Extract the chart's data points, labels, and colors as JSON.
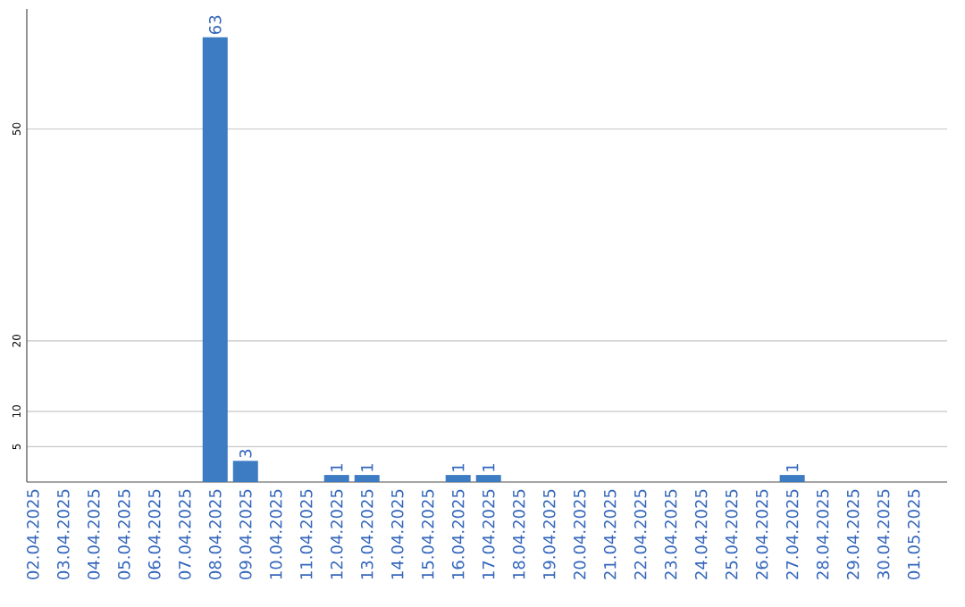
{
  "chart_data": {
    "type": "bar",
    "categories": [
      "02.04.2025",
      "03.04.2025",
      "04.04.2025",
      "05.04.2025",
      "06.04.2025",
      "07.04.2025",
      "08.04.2025",
      "09.04.2025",
      "10.04.2025",
      "11.04.2025",
      "12.04.2025",
      "13.04.2025",
      "14.04.2025",
      "15.04.2025",
      "16.04.2025",
      "17.04.2025",
      "18.04.2025",
      "19.04.2025",
      "20.04.2025",
      "21.04.2025",
      "22.04.2025",
      "23.04.2025",
      "24.04.2025",
      "25.04.2025",
      "26.04.2025",
      "27.04.2025",
      "28.04.2025",
      "29.04.2025",
      "30.04.2025",
      "01.05.2025"
    ],
    "values": [
      0,
      0,
      0,
      0,
      0,
      0,
      63,
      3,
      0,
      0,
      1,
      1,
      0,
      0,
      1,
      1,
      0,
      0,
      0,
      0,
      0,
      0,
      0,
      0,
      0,
      1,
      0,
      0,
      0,
      0
    ],
    "value_labels": [
      null,
      null,
      null,
      null,
      null,
      null,
      "63",
      "3",
      null,
      null,
      "1",
      "1",
      null,
      null,
      "1",
      "1",
      null,
      null,
      null,
      null,
      null,
      null,
      null,
      null,
      null,
      "1",
      null,
      null,
      null,
      null
    ],
    "color": "#3d7cc3",
    "ylim": [
      0,
      67
    ],
    "yticks": [
      5,
      10,
      20,
      50
    ],
    "grid": "y"
  }
}
